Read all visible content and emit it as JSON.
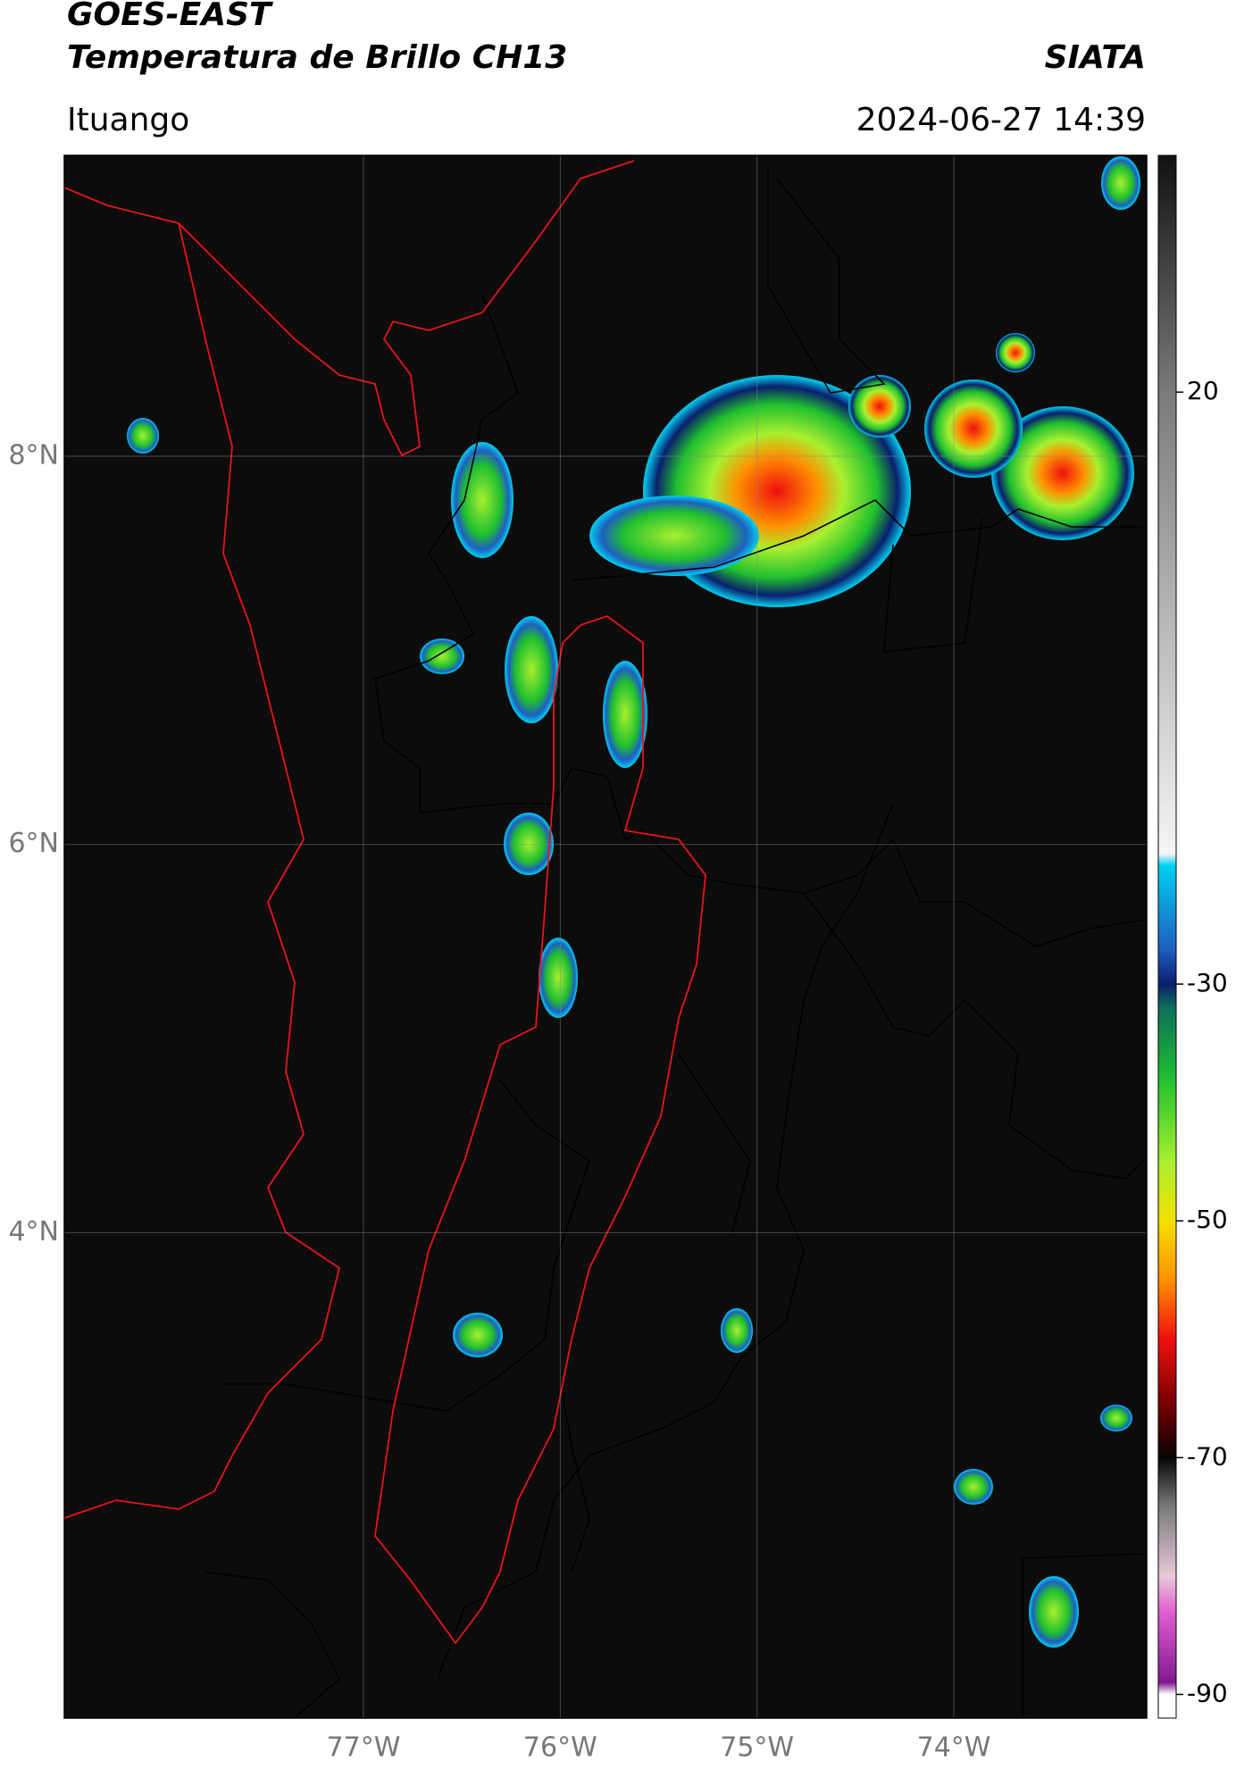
{
  "header": {
    "satellite": "GOES-EAST",
    "product": "Temperatura de Brillo CH13",
    "agency": "SIATA",
    "region": "Ituango",
    "datetime": "2024-06-27 14:39"
  },
  "map": {
    "xlim": [
      -78.52,
      -73.02
    ],
    "ylim": [
      1.5,
      9.55
    ],
    "xticks": [
      {
        "value": -77,
        "label": "77°W"
      },
      {
        "value": -76,
        "label": "76°W"
      },
      {
        "value": -75,
        "label": "75°W"
      },
      {
        "value": -74,
        "label": "74°W"
      }
    ],
    "yticks": [
      {
        "value": 8,
        "label": "8°N"
      },
      {
        "value": 6,
        "label": "6°N"
      },
      {
        "value": 4,
        "label": "4°N"
      }
    ],
    "grid": true,
    "colorbar": {
      "lim": [
        -92,
        40
      ],
      "ticks": [
        20,
        -30,
        -50,
        -70,
        -90
      ],
      "stops": [
        {
          "value": 40,
          "color": "#111111"
        },
        {
          "value": 20,
          "color": "#7a7a7a"
        },
        {
          "value": -19,
          "color": "#f4f4f4"
        },
        {
          "value": -20,
          "color": "#00d0f0"
        },
        {
          "value": -27,
          "color": "#1f5fc0"
        },
        {
          "value": -30,
          "color": "#0a1f6e"
        },
        {
          "value": -32,
          "color": "#0e6f5a"
        },
        {
          "value": -38,
          "color": "#1fbf2f"
        },
        {
          "value": -45,
          "color": "#a8f030"
        },
        {
          "value": -50,
          "color": "#f4e000"
        },
        {
          "value": -55,
          "color": "#ff9000"
        },
        {
          "value": -60,
          "color": "#ee1010"
        },
        {
          "value": -66,
          "color": "#6a0000"
        },
        {
          "value": -70,
          "color": "#050505"
        },
        {
          "value": -74,
          "color": "#777777"
        },
        {
          "value": -80,
          "color": "#e8c8d8"
        },
        {
          "value": -83,
          "color": "#e060d0"
        },
        {
          "value": -89,
          "color": "#801890"
        },
        {
          "value": -90,
          "color": "#ffffff"
        }
      ]
    }
  }
}
